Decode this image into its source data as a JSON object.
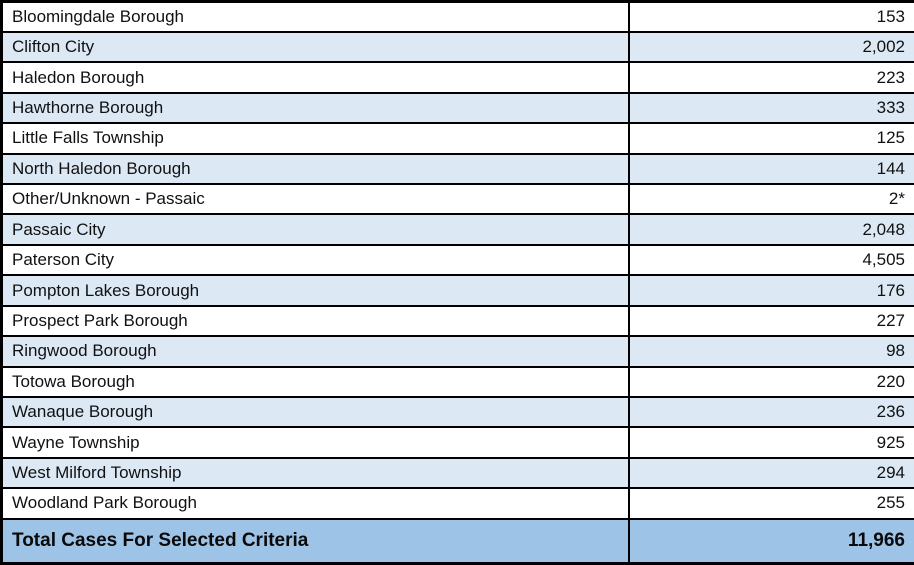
{
  "table": {
    "rows": [
      {
        "name": "Bloomingdale Borough",
        "value": "153"
      },
      {
        "name": "Clifton City",
        "value": "2,002"
      },
      {
        "name": "Haledon Borough",
        "value": "223"
      },
      {
        "name": "Hawthorne Borough",
        "value": "333"
      },
      {
        "name": "Little Falls Township",
        "value": "125"
      },
      {
        "name": "North Haledon Borough",
        "value": "144"
      },
      {
        "name": "Other/Unknown - Passaic",
        "value": "2*"
      },
      {
        "name": "Passaic City",
        "value": "2,048"
      },
      {
        "name": "Paterson City",
        "value": "4,505"
      },
      {
        "name": "Pompton Lakes Borough",
        "value": "176"
      },
      {
        "name": "Prospect Park Borough",
        "value": "227"
      },
      {
        "name": "Ringwood Borough",
        "value": "98"
      },
      {
        "name": "Totowa Borough",
        "value": "220"
      },
      {
        "name": "Wanaque Borough",
        "value": "236"
      },
      {
        "name": "Wayne Township",
        "value": "925"
      },
      {
        "name": "West Milford Township",
        "value": "294"
      },
      {
        "name": "Woodland Park Borough",
        "value": "255"
      }
    ],
    "total": {
      "label": "Total Cases For Selected Criteria",
      "value": "11,966"
    }
  },
  "colors": {
    "band_light_blue": "#dce9f5",
    "total_band_blue": "#9dc3e6",
    "border_black": "#000000",
    "row_white": "#ffffff"
  },
  "chart_data": {
    "type": "table",
    "title": "",
    "categories": [
      "Bloomingdale Borough",
      "Clifton City",
      "Haledon Borough",
      "Hawthorne Borough",
      "Little Falls Township",
      "North Haledon Borough",
      "Other/Unknown - Passaic",
      "Passaic City",
      "Paterson City",
      "Pompton Lakes Borough",
      "Prospect Park Borough",
      "Ringwood Borough",
      "Totowa Borough",
      "Wanaque Borough",
      "Wayne Township",
      "West Milford Township",
      "Woodland Park Borough"
    ],
    "values": [
      153,
      2002,
      223,
      333,
      125,
      144,
      2,
      2048,
      4505,
      176,
      227,
      98,
      220,
      236,
      925,
      294,
      255
    ],
    "value_display_overrides": {
      "Other/Unknown - Passaic": "2*"
    },
    "total_label": "Total Cases For Selected Criteria",
    "total_value": 11966,
    "layout": "two-column table, municipality left-aligned, count right-aligned, alternating white/light-blue row bands, bold blue total row"
  }
}
